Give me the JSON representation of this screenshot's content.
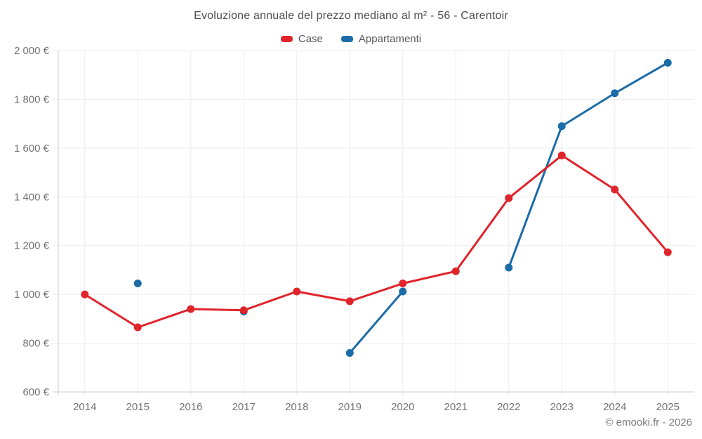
{
  "footer": {
    "text": "© emooki.fr - 2026"
  },
  "chart_data": {
    "type": "line",
    "title": "Evoluzione annuale del prezzo mediano al m² - 56 - Carentoir",
    "categories": [
      "2014",
      "2015",
      "2016",
      "2017",
      "2018",
      "2019",
      "2020",
      "2021",
      "2022",
      "2023",
      "2024",
      "2025"
    ],
    "series": [
      {
        "name": "Case",
        "color": "#e0242b",
        "values": [
          1000,
          865,
          940,
          935,
          1012,
          972,
          1045,
          1095,
          1395,
          1570,
          1430,
          1173
        ]
      },
      {
        "name": "Appartamenti",
        "color": "#1b6ca8",
        "values": [
          null,
          1045,
          null,
          930,
          null,
          760,
          1012,
          null,
          1110,
          1690,
          1825,
          1950
        ]
      }
    ],
    "ylim": [
      600,
      2000
    ],
    "ytick_step": 200,
    "ytick_labels": [
      "600 €",
      "800 €",
      "1 000 €",
      "1 200 €",
      "1 400 €",
      "1 600 €",
      "1 800 €",
      "2 000 €"
    ],
    "grid": true,
    "legend_position": "top",
    "colors": {
      "grid": "#ebebeb",
      "axis": "#cccccc",
      "tick": "#737377"
    }
  }
}
